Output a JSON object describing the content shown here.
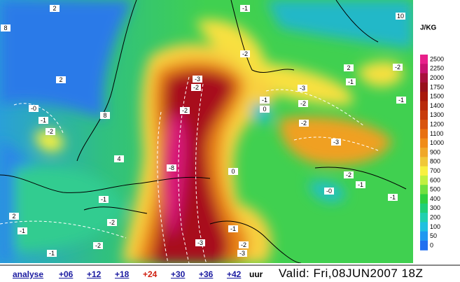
{
  "map": {
    "unit": "J/KG",
    "legend": {
      "levels": [
        "2500",
        "2250",
        "2000",
        "1750",
        "1500",
        "1400",
        "1300",
        "1200",
        "1100",
        "1000",
        "900",
        "800",
        "700",
        "600",
        "500",
        "400",
        "300",
        "200",
        "100",
        "50",
        "0"
      ],
      "colors": [
        "#e8208a",
        "#c81470",
        "#a8103c",
        "#98101c",
        "#a8180c",
        "#b82a0c",
        "#c83c0c",
        "#d8540e",
        "#e87010",
        "#f08c18",
        "#f0a828",
        "#f0c838",
        "#f8f040",
        "#c0f040",
        "#70e040",
        "#30d040",
        "#20d078",
        "#20d0b0",
        "#20c0e0",
        "#2098f0",
        "#2070f0"
      ]
    },
    "contour_labels": [
      "-1",
      "10",
      "2",
      "8",
      "-2",
      "2",
      "-2",
      "2",
      "-1",
      "-3",
      "-2",
      "-3",
      "-1",
      "-2",
      "-1",
      "-0",
      "-1",
      "0",
      "-2",
      "8",
      "-2",
      "-2",
      "-3",
      "4",
      "-8",
      "0",
      "-2",
      "-1",
      "-0",
      "-1",
      "-1",
      "-2",
      "2",
      "-1",
      "-1",
      "-2",
      "-3",
      "-2",
      "-1",
      "-3"
    ]
  },
  "footer": {
    "links": [
      "analyse",
      "+06",
      "+12",
      "+18",
      "+24",
      "+30",
      "+36",
      "+42"
    ],
    "suffix": "uur",
    "valid": "Valid:  Fri,08JUN2007  18Z"
  }
}
